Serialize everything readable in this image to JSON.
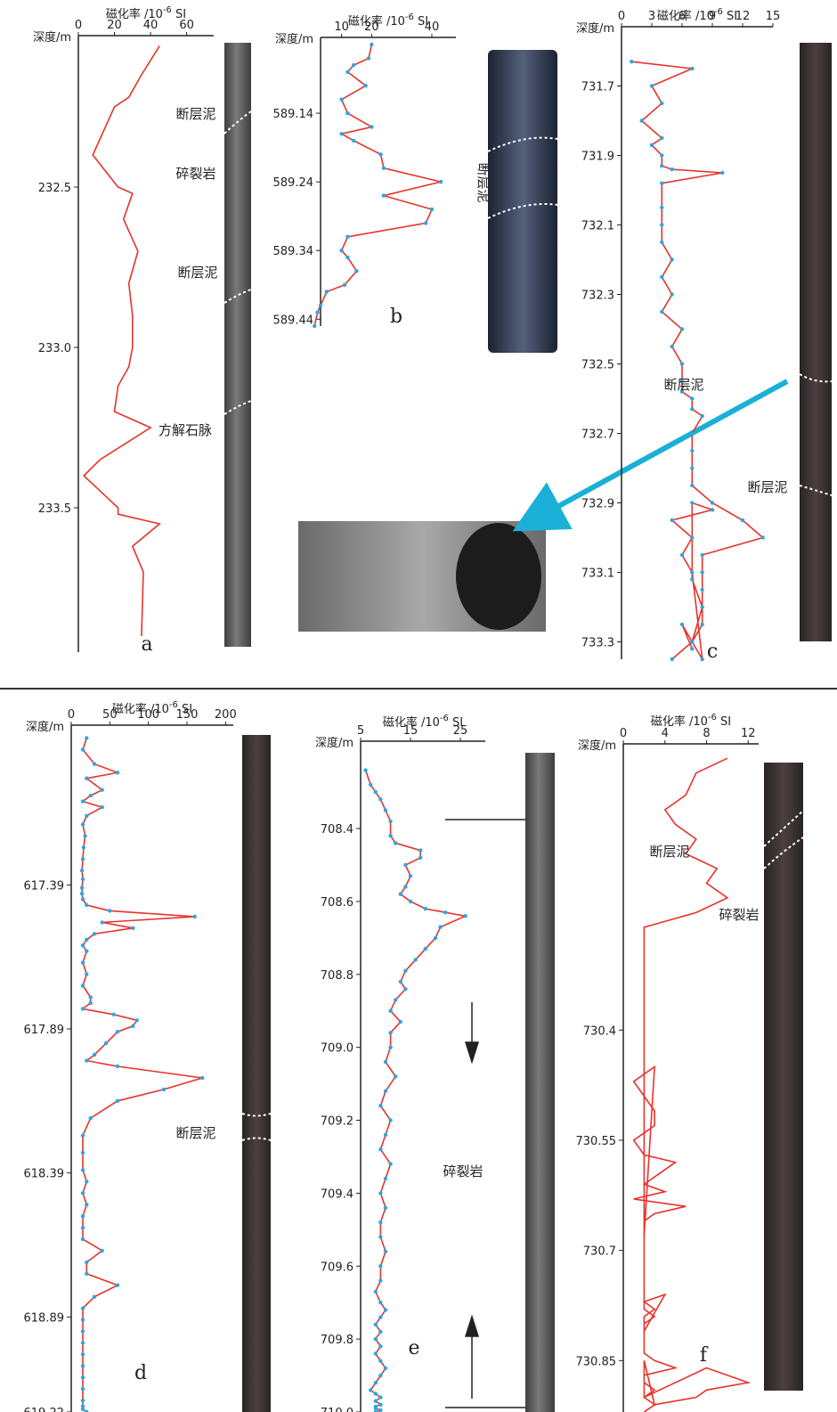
{
  "figure": {
    "xlabel_main": "磁化率",
    "xlabel_unit": "/10",
    "xlabel_exp": "-6",
    "xlabel_si": "SI",
    "ylabel": "深度/m"
  },
  "colors": {
    "red_line": "#e8322b",
    "blue_line": "#29a8e0",
    "arrow_blue": "#1ab0d8",
    "core_gray": "#5b5b5b",
    "core_dark": "#3a2f2f"
  },
  "chart_data": [
    {
      "panel": "a",
      "type": "line",
      "line_color": "red",
      "markers": false,
      "xlim": [
        0,
        75
      ],
      "xticks": [
        "0",
        "20",
        "40",
        "60"
      ],
      "xtick_values": [
        0,
        20,
        40,
        60
      ],
      "ylim": [
        232.05,
        233.95
      ],
      "yticks": [
        "232.5",
        "233.0",
        "233.5"
      ],
      "ytick_values": [
        232.5,
        233.0,
        233.5
      ],
      "x": [
        45,
        35,
        28,
        20,
        8,
        22,
        30,
        25,
        33,
        28,
        30,
        30,
        28,
        22,
        20,
        40,
        12,
        3,
        22,
        22,
        45,
        30,
        36,
        35
      ],
      "y": [
        232.06,
        232.15,
        232.22,
        232.25,
        232.4,
        232.5,
        232.52,
        232.6,
        232.7,
        232.8,
        232.9,
        233.0,
        233.06,
        233.12,
        233.2,
        233.25,
        233.35,
        233.4,
        233.5,
        233.52,
        233.55,
        233.62,
        233.7,
        233.9
      ],
      "annotations": [
        "断层泥",
        "碎裂岩",
        "断层泥",
        "方解石脉"
      ]
    },
    {
      "panel": "b",
      "type": "line",
      "line_color": "red",
      "markers": true,
      "marker_color": "#29a8e0",
      "xlim": [
        3,
        48
      ],
      "xticks": [
        "10",
        "20",
        "40"
      ],
      "xtick_values": [
        10,
        20,
        40
      ],
      "ylim": [
        589.04,
        589.45
      ],
      "yticks": [
        "589.14",
        "589.24",
        "589.34",
        "589.44"
      ],
      "ytick_values": [
        589.14,
        589.24,
        589.34,
        589.44
      ],
      "x": [
        20,
        19,
        14,
        12,
        18,
        10,
        12,
        20,
        10,
        14,
        23,
        24,
        43,
        24,
        40,
        38,
        12,
        10,
        12,
        15,
        11,
        5,
        3,
        2,
        1
      ],
      "y": [
        589.04,
        589.06,
        589.07,
        589.08,
        589.1,
        589.12,
        589.14,
        589.16,
        589.17,
        589.18,
        589.2,
        589.22,
        589.24,
        589.26,
        589.28,
        589.3,
        589.32,
        589.34,
        589.35,
        589.37,
        589.39,
        589.4,
        589.42,
        589.43,
        589.45
      ],
      "annotations": [
        "断层泥"
      ]
    },
    {
      "panel": "c",
      "type": "line",
      "line_color": "red",
      "markers": true,
      "marker_color": "#29a8e0",
      "xlim": [
        0,
        15
      ],
      "xticks": [
        "0",
        "3",
        "6",
        "9",
        "12",
        "15"
      ],
      "xtick_values": [
        0,
        3,
        6,
        9,
        12,
        15
      ],
      "ylim": [
        731.55,
        733.35
      ],
      "yticks": [
        "731.7",
        "731.9",
        "732.1",
        "732.3",
        "732.5",
        "732.7",
        "732.9",
        "733.1",
        "733.3"
      ],
      "ytick_values": [
        731.7,
        731.9,
        732.1,
        732.3,
        732.5,
        732.7,
        732.9,
        733.1,
        733.3
      ],
      "x": [
        1,
        7,
        3,
        4,
        2,
        4,
        3,
        4,
        4,
        5,
        10,
        4,
        4,
        4,
        4,
        5,
        4,
        5,
        4,
        6,
        5,
        6,
        6,
        6,
        7,
        7,
        8,
        7,
        7,
        7,
        7,
        9,
        12,
        14,
        8,
        8,
        8,
        8,
        8,
        7,
        8,
        7,
        6,
        7,
        5,
        9,
        7,
        7,
        8,
        7,
        5,
        7,
        6,
        7
      ],
      "y": [
        731.63,
        731.65,
        731.7,
        731.75,
        731.8,
        731.85,
        731.87,
        731.9,
        731.93,
        731.94,
        731.95,
        731.98,
        732.05,
        732.1,
        732.15,
        732.2,
        732.25,
        732.3,
        732.35,
        732.4,
        732.45,
        732.5,
        732.55,
        732.58,
        732.6,
        732.63,
        732.65,
        732.7,
        732.75,
        732.8,
        732.85,
        732.9,
        732.95,
        733.0,
        733.05,
        733.1,
        733.15,
        733.2,
        733.25,
        733.3,
        733.35,
        733.1,
        733.05,
        733.0,
        732.95,
        732.92,
        732.9,
        733.12,
        733.2,
        733.3,
        733.35,
        733.3,
        733.25,
        733.32
      ],
      "annotations": [
        "断层泥",
        "断层泥"
      ]
    },
    {
      "panel": "d",
      "type": "line",
      "line_color": "red",
      "markers": true,
      "marker_color": "#29a8e0",
      "xlim": [
        0,
        210
      ],
      "xticks": [
        "0",
        "50",
        "100",
        "150",
        "200"
      ],
      "xtick_values": [
        0,
        50,
        100,
        150,
        200
      ],
      "ylim": [
        616.86,
        619.22
      ],
      "yticks": [
        "617.39",
        "617.89",
        "618.39",
        "618.89",
        "619.22"
      ],
      "ytick_values": [
        617.39,
        617.89,
        618.39,
        618.89,
        619.22
      ],
      "x": [
        20,
        15,
        30,
        60,
        20,
        40,
        25,
        15,
        40,
        20,
        15,
        18,
        16,
        15,
        14,
        15,
        14,
        14,
        15,
        20,
        50,
        160,
        40,
        80,
        30,
        20,
        15,
        20,
        15,
        20,
        15,
        25,
        25,
        15,
        55,
        85,
        80,
        60,
        45,
        30,
        20,
        60,
        170,
        120,
        60,
        25,
        15,
        15,
        15,
        20,
        15,
        20,
        15,
        15,
        15,
        40,
        20,
        20,
        60,
        30,
        15,
        15,
        15,
        15,
        15,
        15,
        15,
        15,
        15,
        15,
        15,
        20
      ],
      "y": [
        616.88,
        616.92,
        616.97,
        617.0,
        617.02,
        617.06,
        617.08,
        617.1,
        617.12,
        617.15,
        617.18,
        617.22,
        617.26,
        617.3,
        617.34,
        617.37,
        617.4,
        617.42,
        617.44,
        617.46,
        617.48,
        617.5,
        617.52,
        617.54,
        617.56,
        617.58,
        617.6,
        617.62,
        617.66,
        617.7,
        617.74,
        617.78,
        617.8,
        617.82,
        617.84,
        617.86,
        617.88,
        617.9,
        617.94,
        617.98,
        618.0,
        618.02,
        618.06,
        618.1,
        618.14,
        618.2,
        618.26,
        618.32,
        618.38,
        618.42,
        618.46,
        618.5,
        618.54,
        618.58,
        618.62,
        618.66,
        618.7,
        618.74,
        618.78,
        618.82,
        618.86,
        618.9,
        618.94,
        618.98,
        619.02,
        619.06,
        619.1,
        619.14,
        619.18,
        619.2,
        619.21,
        619.22
      ],
      "annotations": [
        "断层泥"
      ]
    },
    {
      "panel": "e",
      "type": "line",
      "line_color": "red",
      "markers": true,
      "marker_color": "#29a8e0",
      "xlim": [
        5,
        30
      ],
      "xticks": [
        "5",
        "15",
        "25"
      ],
      "xtick_values": [
        5,
        15,
        25
      ],
      "ylim": [
        708.18,
        710.0
      ],
      "yticks": [
        "708.4",
        "708.6",
        "708.8",
        "709.0",
        "709.2",
        "709.4",
        "709.6",
        "709.8",
        "710.0"
      ],
      "ytick_values": [
        708.4,
        708.6,
        708.8,
        709.0,
        709.2,
        709.4,
        709.6,
        709.8,
        710.0
      ],
      "x": [
        6,
        7,
        8,
        9,
        10,
        11,
        11,
        12,
        17,
        17,
        14,
        15,
        14,
        13,
        15,
        18,
        22,
        26,
        21,
        20,
        18,
        16,
        14,
        13,
        14,
        12,
        11,
        13,
        11,
        11,
        10,
        12,
        10,
        9,
        11,
        10,
        9,
        11,
        10,
        9,
        10,
        9,
        9,
        10,
        9,
        9,
        8,
        9,
        10,
        9,
        8,
        9,
        8,
        9,
        8,
        9,
        10,
        9,
        8,
        7,
        8,
        9,
        8,
        9,
        8,
        8,
        9,
        8
      ],
      "y": [
        708.24,
        708.28,
        708.3,
        708.32,
        708.35,
        708.38,
        708.42,
        708.44,
        708.46,
        708.48,
        708.5,
        708.53,
        708.56,
        708.58,
        708.6,
        708.62,
        708.63,
        708.64,
        708.67,
        708.7,
        708.73,
        708.76,
        708.79,
        708.82,
        708.84,
        708.87,
        708.9,
        708.93,
        708.96,
        709.0,
        709.04,
        709.08,
        709.12,
        709.16,
        709.2,
        709.24,
        709.28,
        709.32,
        709.36,
        709.4,
        709.44,
        709.48,
        709.52,
        709.56,
        709.6,
        709.64,
        709.67,
        709.7,
        709.72,
        709.74,
        709.76,
        709.78,
        709.8,
        709.82,
        709.84,
        709.86,
        709.88,
        709.9,
        709.92,
        709.94,
        709.95,
        709.96,
        709.97,
        709.98,
        709.985,
        709.99,
        709.995,
        710.0
      ],
      "annotations": [
        "碎裂岩"
      ]
    },
    {
      "panel": "f",
      "type": "line",
      "line_color": "red",
      "markers": false,
      "xlim": [
        0,
        13
      ],
      "xticks": [
        "0",
        "4",
        "8",
        "12"
      ],
      "xtick_values": [
        0,
        4,
        8,
        12
      ],
      "ylim": [
        730.02,
        730.92
      ],
      "yticks": [
        "730.4",
        "730.55",
        "730.7",
        "730.85"
      ],
      "ytick_values": [
        730.4,
        730.55,
        730.7,
        730.85
      ],
      "x": [
        10,
        7,
        6,
        4,
        5,
        7,
        6,
        9,
        8,
        10,
        7,
        2,
        2,
        2,
        2,
        2,
        2,
        2,
        2,
        2,
        2,
        2,
        2,
        2,
        2,
        2,
        2,
        2,
        2,
        2,
        2,
        2,
        2,
        3,
        1,
        2,
        3,
        3,
        1,
        2,
        5,
        3,
        2,
        4,
        1,
        6,
        3,
        2,
        2,
        2,
        2,
        2,
        2,
        2,
        2,
        2,
        2,
        2,
        2,
        2,
        3,
        2,
        2,
        4,
        2,
        3,
        2,
        2,
        2,
        2,
        2,
        2,
        3,
        5,
        2,
        2,
        3,
        2,
        3,
        2,
        2,
        2,
        2,
        2,
        2,
        8,
        10,
        12,
        8,
        7,
        3,
        2,
        2
      ],
      "y": [
        730.03,
        730.05,
        730.08,
        730.1,
        730.12,
        730.14,
        730.16,
        730.18,
        730.2,
        730.22,
        730.24,
        730.26,
        730.28,
        730.3,
        730.32,
        730.34,
        730.36,
        730.38,
        730.4,
        730.42,
        730.44,
        730.46,
        730.48,
        730.5,
        730.52,
        730.54,
        730.56,
        730.58,
        730.6,
        730.62,
        730.64,
        730.66,
        730.68,
        730.45,
        730.47,
        730.49,
        730.51,
        730.53,
        730.55,
        730.57,
        730.58,
        730.6,
        730.61,
        730.62,
        730.63,
        730.64,
        730.65,
        730.66,
        730.67,
        730.68,
        730.69,
        730.7,
        730.71,
        730.72,
        730.73,
        730.74,
        730.75,
        730.76,
        730.77,
        730.78,
        730.79,
        730.8,
        730.81,
        730.76,
        730.77,
        730.78,
        730.79,
        730.8,
        730.81,
        730.82,
        730.83,
        730.84,
        730.85,
        730.86,
        730.87,
        730.88,
        730.89,
        730.9,
        730.91,
        730.85,
        730.86,
        730.87,
        730.88,
        730.89,
        730.9,
        730.86,
        730.87,
        730.88,
        730.89,
        730.9,
        730.91,
        730.92,
        730.92
      ],
      "annotations": [
        "断层泥",
        "碎裂岩"
      ]
    }
  ]
}
